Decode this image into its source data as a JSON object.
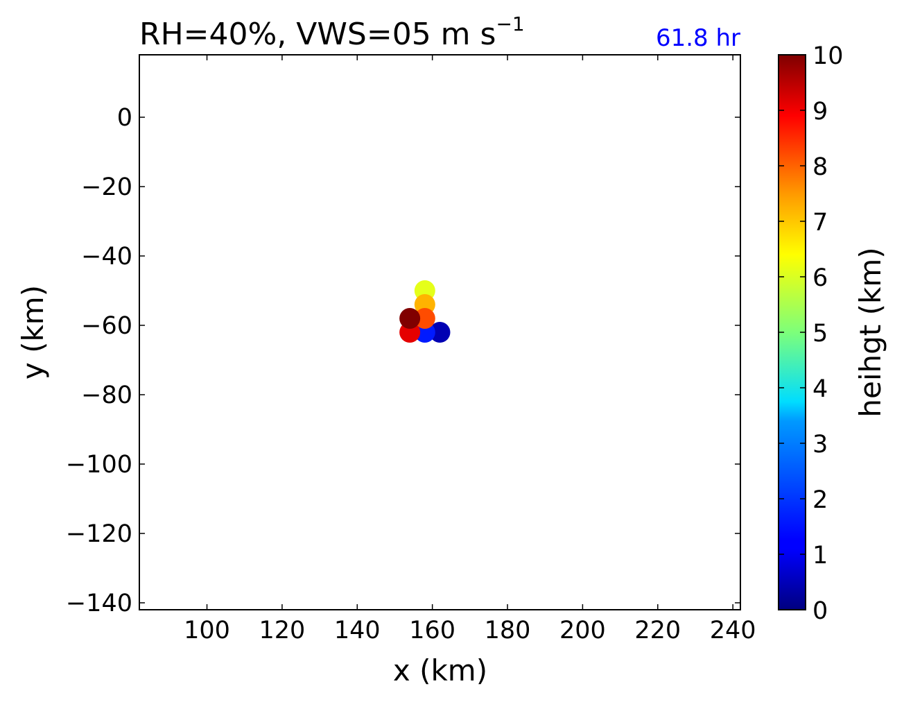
{
  "chart_data": {
    "type": "scatter",
    "title": "RH=40%, VWS=05 m s",
    "title_superscript": "−1",
    "time_label": "61.8 hr",
    "xlabel": "x (km)",
    "ylabel": "y (km)",
    "xlim": [
      82,
      242
    ],
    "ylim": [
      -142,
      18
    ],
    "xticks": [
      100,
      120,
      140,
      160,
      180,
      200,
      220,
      240
    ],
    "yticks": [
      0,
      -20,
      -40,
      -60,
      -80,
      -100,
      -120,
      -140
    ],
    "xtick_labels": [
      "100",
      "120",
      "140",
      "160",
      "180",
      "200",
      "220",
      "240"
    ],
    "ytick_labels": [
      "0",
      "−20",
      "−40",
      "−60",
      "−80",
      "−100",
      "−120",
      "−140"
    ],
    "grid": false,
    "colormap": "jet",
    "colorbar": {
      "label": "heihgt (km)",
      "range": [
        0,
        10
      ],
      "ticks": [
        0,
        1,
        2,
        3,
        4,
        5,
        6,
        7,
        8,
        9,
        10
      ],
      "tick_labels": [
        "0",
        "1",
        "2",
        "3",
        "4",
        "5",
        "6",
        "7",
        "8",
        "9",
        "10"
      ]
    },
    "points": [
      {
        "x": 162,
        "y": -62,
        "height": 0.5
      },
      {
        "x": 158,
        "y": -62,
        "height": 1.5
      },
      {
        "x": 158,
        "y": -50,
        "height": 6.0
      },
      {
        "x": 158,
        "y": -54,
        "height": 7.0
      },
      {
        "x": 154,
        "y": -62,
        "height": 9.0
      },
      {
        "x": 158,
        "y": -58,
        "height": 8.0
      },
      {
        "x": 154,
        "y": -58,
        "height": 10.0
      }
    ]
  }
}
